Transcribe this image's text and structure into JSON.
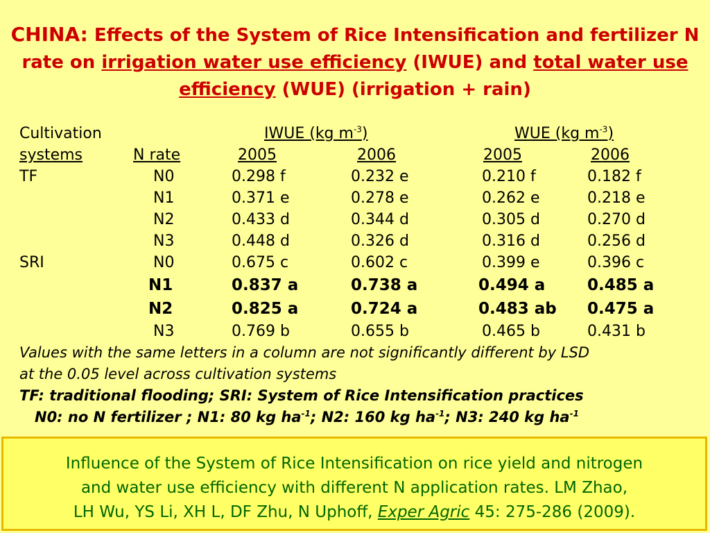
{
  "title": {
    "lead": "CHINA:",
    "part1": " Effects of the System of Rice Intensification and fertilizer N rate on ",
    "iwue_term": "irrigation water use efficiency",
    "part2": " (IWUE) and ",
    "wue_term": "total water use efficiency",
    "part3": " (WUE) (irrigation + rain)"
  },
  "table": {
    "header_cultivation": "Cultivation",
    "header_systems": "systems",
    "header_nrate": "N rate",
    "iwue_group_label": "IWUE (kg m",
    "iwue_group_sup": "-3",
    "iwue_group_close": ")",
    "wue_group_label": "WUE (kg m",
    "wue_group_sup": "-3",
    "wue_group_close": ")",
    "years": [
      "2005",
      "2006",
      "2005",
      "2006"
    ],
    "rows": [
      {
        "system": "TF",
        "nrate": "N0",
        "iwue2005": "0.298 f",
        "iwue2006": "0.232 e",
        "wue2005": "0.210 f",
        "wue2006": "0.182 f"
      },
      {
        "system": "",
        "nrate": "N1",
        "iwue2005": "0.371 e",
        "iwue2006": "0.278 e",
        "wue2005": "0.262 e",
        "wue2006": "0.218 e"
      },
      {
        "system": "",
        "nrate": "N2",
        "iwue2005": "0.433 d",
        "iwue2006": "0.344 d",
        "wue2005": "0.305 d",
        "wue2006": "0.270 d"
      },
      {
        "system": "",
        "nrate": "N3",
        "iwue2005": "0.448 d",
        "iwue2006": "0.326 d",
        "wue2005": "0.316 d",
        "wue2006": "0.256 d"
      },
      {
        "system": "SRI",
        "nrate": "N0",
        "iwue2005": "0.675 c",
        "iwue2006": "0.602 c",
        "wue2005": "0.399 e",
        "wue2006": "0.396 c"
      },
      {
        "system": "",
        "nrate": "N1",
        "iwue2005": "0.837 a",
        "iwue2006": "0.738 a",
        "wue2005": "0.494 a",
        "wue2006": "0.485 a"
      },
      {
        "system": "",
        "nrate": "N2",
        "iwue2005": "0.825 a",
        "iwue2006": "0.724 a",
        "wue2005": "0.483 ab",
        "wue2006": "0.475 a"
      },
      {
        "system": "",
        "nrate": "N3",
        "iwue2005": "0.769 b",
        "iwue2006": "0.655 b",
        "wue2005": "0.465 b",
        "wue2006": "0.431 b"
      }
    ]
  },
  "notes": {
    "lsd_line1": "Values with the same letters in a column are not significantly different by LSD",
    "lsd_line2": "at the 0.05 level across cultivation systems",
    "abbrev": "TF: traditional flooding; SRI: System of Rice Intensification practices",
    "n_levels": {
      "n0": "N0: no N fertilizer ; N1: 80 kg ha",
      "sup1": "-1",
      "n2": "; N2: 160 kg ha",
      "sup2": "-1",
      "n3": "; N3: 240 kg ha",
      "sup3": "-1"
    }
  },
  "reference": {
    "line1": "Influence of the System of Rice Intensification on rice yield and nitrogen",
    "line2": "and water use efficiency with different N application rates.  LM Zhao,",
    "line3_pre": "LH Wu, YS Li, XH L, DF Zhu, N Uphoff, ",
    "journal": "Exper Agric",
    "line3_post": " 45: 275-286 (2009)."
  },
  "colors": {
    "background": "#ffff99",
    "title": "#cc0000",
    "reference_text": "#006600",
    "reference_box": "#ffff66",
    "reference_border": "#e6b800"
  }
}
